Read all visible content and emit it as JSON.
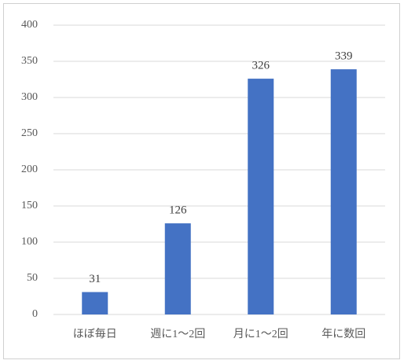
{
  "chart_data": {
    "type": "bar",
    "categories": [
      "ほぼ毎日",
      "週に1～2回",
      "月に1～2回",
      "年に数回"
    ],
    "values": [
      31,
      126,
      326,
      339
    ],
    "color": "#4472c4",
    "ylim": [
      0,
      400
    ],
    "yticks": [
      0,
      50,
      100,
      150,
      200,
      250,
      300,
      350,
      400
    ],
    "grid": true
  }
}
